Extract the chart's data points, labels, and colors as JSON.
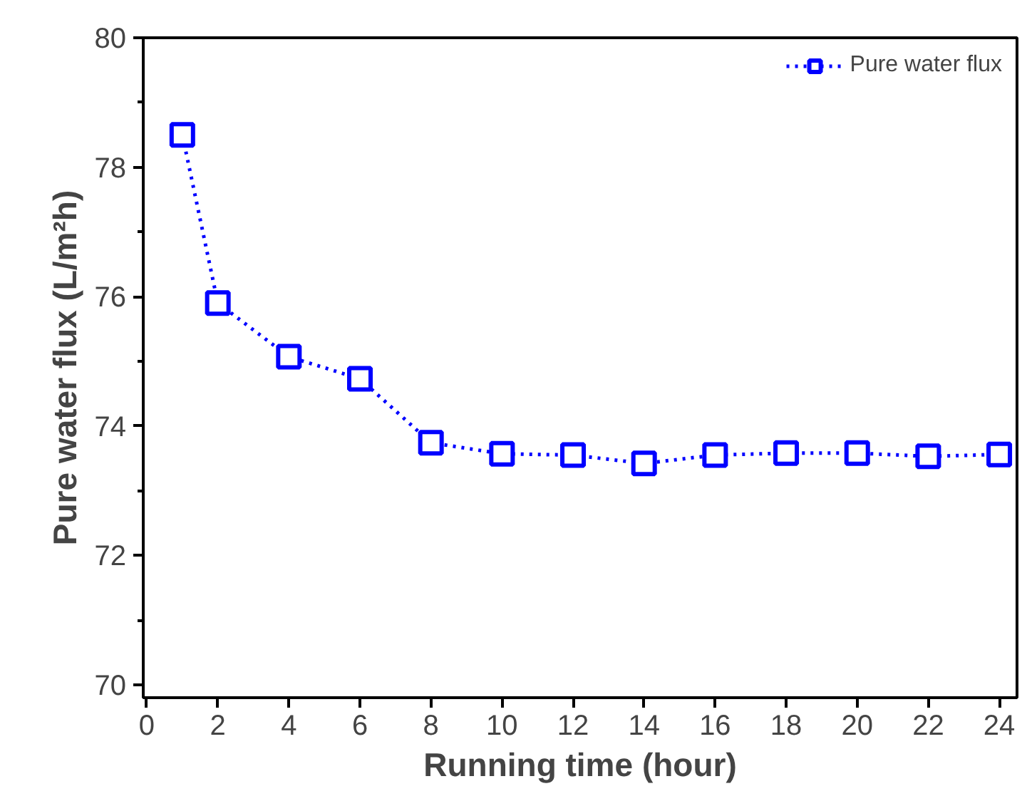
{
  "chart_data": {
    "type": "line",
    "xlabel": "Running time (hour)",
    "ylabel": "Pure water flux (L/m²h)",
    "x": [
      1,
      2,
      4,
      6,
      8,
      10,
      12,
      14,
      16,
      18,
      20,
      22,
      24
    ],
    "series": [
      {
        "name": "Pure water flux",
        "color": "#0000ff",
        "values": [
          78.5,
          75.9,
          75.07,
          74.73,
          73.74,
          73.57,
          73.55,
          73.42,
          73.55,
          73.58,
          73.58,
          73.53,
          73.56
        ]
      }
    ],
    "xlim": [
      -0.1,
      24.5
    ],
    "ylim": [
      69.8,
      80
    ],
    "xticks": [
      0,
      2,
      4,
      6,
      8,
      10,
      12,
      14,
      16,
      18,
      20,
      22,
      24
    ],
    "yticks": [
      70,
      72,
      74,
      76,
      78,
      80
    ],
    "marker": "square",
    "line_style": "dotted",
    "grid": false,
    "legend": "top right"
  }
}
